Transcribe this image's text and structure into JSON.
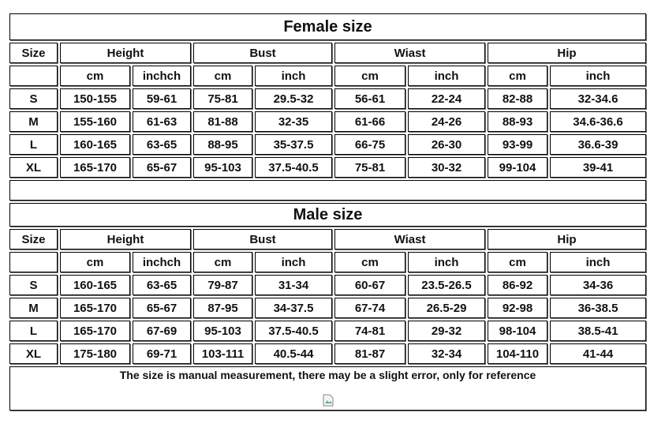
{
  "tables": [
    {
      "title": "Female size",
      "size_label": "Size",
      "groups": [
        "Height",
        "Bust",
        "Wiast",
        "Hip"
      ],
      "units": [
        "cm",
        "inchch",
        "cm",
        "inch",
        "cm",
        "inch",
        "cm",
        "inch"
      ],
      "rows": [
        [
          "S",
          "150-155",
          "59-61",
          "75-81",
          "29.5-32",
          "56-61",
          "22-24",
          "82-88",
          "32-34.6"
        ],
        [
          "M",
          "155-160",
          "61-63",
          "81-88",
          "32-35",
          "61-66",
          "24-26",
          "88-93",
          "34.6-36.6"
        ],
        [
          "L",
          "160-165",
          "63-65",
          "88-95",
          "35-37.5",
          "66-75",
          "26-30",
          "93-99",
          "36.6-39"
        ],
        [
          "XL",
          "165-170",
          "65-67",
          "95-103",
          "37.5-40.5",
          "75-81",
          "30-32",
          "99-104",
          "39-41"
        ]
      ]
    },
    {
      "title": "Male size",
      "size_label": "Size",
      "groups": [
        "Height",
        "Bust",
        "Wiast",
        "Hip"
      ],
      "units": [
        "cm",
        "inchch",
        "cm",
        "inch",
        "cm",
        "inch",
        "cm",
        "inch"
      ],
      "rows": [
        [
          "S",
          "160-165",
          "63-65",
          "79-87",
          "31-34",
          "60-67",
          "23.5-26.5",
          "86-92",
          "34-36"
        ],
        [
          "M",
          "165-170",
          "65-67",
          "87-95",
          "34-37.5",
          "67-74",
          "26.5-29",
          "92-98",
          "36-38.5"
        ],
        [
          "L",
          "165-170",
          "67-69",
          "95-103",
          "37.5-40.5",
          "74-81",
          "29-32",
          "98-104",
          "38.5-41"
        ],
        [
          "XL",
          "175-180",
          "69-71",
          "103-111",
          "40.5-44",
          "81-87",
          "32-34",
          "104-110",
          "41-44"
        ]
      ]
    }
  ],
  "note": "The size is manual measurement, there may be a slight error, only for reference"
}
